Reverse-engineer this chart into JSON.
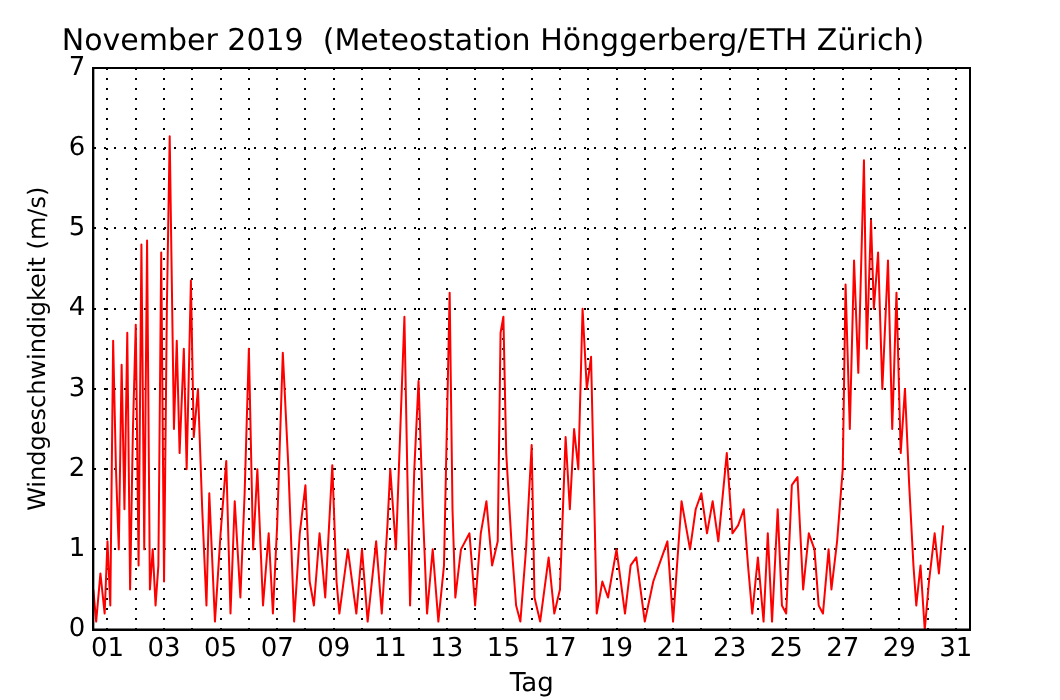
{
  "chart_data": {
    "type": "line",
    "title": "November 2019  (Meteostation Hönggerberg/ETH Zürich)",
    "xlabel": "Tag",
    "ylabel": "Windgeschwindigkeit (m/s)",
    "xlim": [
      0.5,
      31.5
    ],
    "ylim": [
      0,
      7
    ],
    "yticks": [
      0,
      1,
      2,
      3,
      4,
      5,
      6,
      7
    ],
    "xticks": [
      {
        "value": 1,
        "label": "01"
      },
      {
        "value": 2,
        "label": null
      },
      {
        "value": 3,
        "label": "03"
      },
      {
        "value": 4,
        "label": null
      },
      {
        "value": 5,
        "label": "05"
      },
      {
        "value": 6,
        "label": null
      },
      {
        "value": 7,
        "label": "07"
      },
      {
        "value": 8,
        "label": null
      },
      {
        "value": 9,
        "label": "09"
      },
      {
        "value": 10,
        "label": null
      },
      {
        "value": 11,
        "label": "11"
      },
      {
        "value": 12,
        "label": null
      },
      {
        "value": 13,
        "label": "13"
      },
      {
        "value": 14,
        "label": null
      },
      {
        "value": 15,
        "label": "15"
      },
      {
        "value": 16,
        "label": null
      },
      {
        "value": 17,
        "label": "17"
      },
      {
        "value": 18,
        "label": null
      },
      {
        "value": 19,
        "label": "19"
      },
      {
        "value": 20,
        "label": null
      },
      {
        "value": 21,
        "label": "21"
      },
      {
        "value": 22,
        "label": null
      },
      {
        "value": 23,
        "label": "23"
      },
      {
        "value": 24,
        "label": null
      },
      {
        "value": 25,
        "label": "25"
      },
      {
        "value": 26,
        "label": null
      },
      {
        "value": 27,
        "label": "27"
      },
      {
        "value": 28,
        "label": null
      },
      {
        "value": 29,
        "label": "29"
      },
      {
        "value": 30,
        "label": null
      },
      {
        "value": 31,
        "label": "31"
      }
    ],
    "grid": true,
    "marker": "none",
    "line_style": "solid",
    "series": [
      {
        "color": "#ff0000",
        "x": [
          0.5,
          0.6,
          0.75,
          0.9,
          1.0,
          1.1,
          1.2,
          1.3,
          1.4,
          1.5,
          1.6,
          1.7,
          1.8,
          1.9,
          2.0,
          2.1,
          2.2,
          2.3,
          2.4,
          2.5,
          2.6,
          2.7,
          2.8,
          2.9,
          3.0,
          3.1,
          3.2,
          3.35,
          3.45,
          3.55,
          3.7,
          3.8,
          3.95,
          4.05,
          4.2,
          4.35,
          4.5,
          4.6,
          4.8,
          5.0,
          5.2,
          5.35,
          5.5,
          5.7,
          5.85,
          6.0,
          6.15,
          6.3,
          6.5,
          6.7,
          6.85,
          7.0,
          7.2,
          7.4,
          7.6,
          7.8,
          8.0,
          8.15,
          8.3,
          8.5,
          8.7,
          8.95,
          9.1,
          9.2,
          9.5,
          9.8,
          10.0,
          10.2,
          10.5,
          10.7,
          10.9,
          11.0,
          11.2,
          11.5,
          11.6,
          11.7,
          11.85,
          12.0,
          12.15,
          12.3,
          12.5,
          12.7,
          12.9,
          13.1,
          13.2,
          13.3,
          13.5,
          13.8,
          14.0,
          14.2,
          14.4,
          14.6,
          14.8,
          14.9,
          15.0,
          15.1,
          15.3,
          15.45,
          15.6,
          15.8,
          16.0,
          16.1,
          16.3,
          16.6,
          16.8,
          17.0,
          17.2,
          17.35,
          17.5,
          17.65,
          17.8,
          17.95,
          18.1,
          18.3,
          18.5,
          18.7,
          19.0,
          19.3,
          19.5,
          19.7,
          20.0,
          20.3,
          20.5,
          20.8,
          21.0,
          21.3,
          21.6,
          21.8,
          22.0,
          22.2,
          22.4,
          22.6,
          22.9,
          23.1,
          23.3,
          23.5,
          23.65,
          23.8,
          24.0,
          24.2,
          24.35,
          24.5,
          24.7,
          24.85,
          25.0,
          25.2,
          25.4,
          25.6,
          25.8,
          26.0,
          26.15,
          26.3,
          26.5,
          26.6,
          26.8,
          27.0,
          27.1,
          27.25,
          27.4,
          27.55,
          27.75,
          27.85,
          28.0,
          28.1,
          28.25,
          28.4,
          28.6,
          28.75,
          28.9,
          29.05,
          29.2,
          29.35,
          29.5,
          29.6,
          29.75,
          29.9,
          30.05,
          30.25,
          30.4,
          30.55
        ],
        "values": [
          0.5,
          0.1,
          0.7,
          0.2,
          1.1,
          0.3,
          3.6,
          2.0,
          1.0,
          3.3,
          1.5,
          3.7,
          0.5,
          2.5,
          3.8,
          0.8,
          4.8,
          1.0,
          4.85,
          0.5,
          1.0,
          0.3,
          0.8,
          4.7,
          0.6,
          4.0,
          6.15,
          2.5,
          3.6,
          2.2,
          3.5,
          2.0,
          4.35,
          2.4,
          3.0,
          1.5,
          0.3,
          1.7,
          0.1,
          1.2,
          2.1,
          0.2,
          1.6,
          0.4,
          1.7,
          3.5,
          1.0,
          2.0,
          0.3,
          1.2,
          0.2,
          1.3,
          3.45,
          2.0,
          0.1,
          1.2,
          1.8,
          0.6,
          0.3,
          1.2,
          0.4,
          2.05,
          0.6,
          0.2,
          1.0,
          0.2,
          1.0,
          0.1,
          1.1,
          0.2,
          1.3,
          2.0,
          1.0,
          3.9,
          2.0,
          0.3,
          2.0,
          3.1,
          1.5,
          0.2,
          1.0,
          0.1,
          0.8,
          4.2,
          1.5,
          0.4,
          1.0,
          1.2,
          0.3,
          1.2,
          1.6,
          0.8,
          1.1,
          3.7,
          3.9,
          2.2,
          1.0,
          0.3,
          0.1,
          1.0,
          2.3,
          0.4,
          0.1,
          0.9,
          0.2,
          0.5,
          2.4,
          1.5,
          2.5,
          2.0,
          4.0,
          3.0,
          3.4,
          0.2,
          0.6,
          0.4,
          1.0,
          0.2,
          0.8,
          0.9,
          0.1,
          0.6,
          0.8,
          1.1,
          0.1,
          1.6,
          1.0,
          1.5,
          1.7,
          1.2,
          1.6,
          1.1,
          2.2,
          1.2,
          1.3,
          1.5,
          0.8,
          0.2,
          0.9,
          0.1,
          1.2,
          0.1,
          1.5,
          0.3,
          0.2,
          1.8,
          1.9,
          0.5,
          1.2,
          1.0,
          0.3,
          0.2,
          1.0,
          0.5,
          1.1,
          2.0,
          4.3,
          2.5,
          4.6,
          3.2,
          5.85,
          3.5,
          5.1,
          4.0,
          4.7,
          3.0,
          4.6,
          2.5,
          4.2,
          2.2,
          3.0,
          1.8,
          0.8,
          0.3,
          0.8,
          0.0,
          0.6,
          1.2,
          0.7,
          1.3
        ]
      }
    ]
  }
}
